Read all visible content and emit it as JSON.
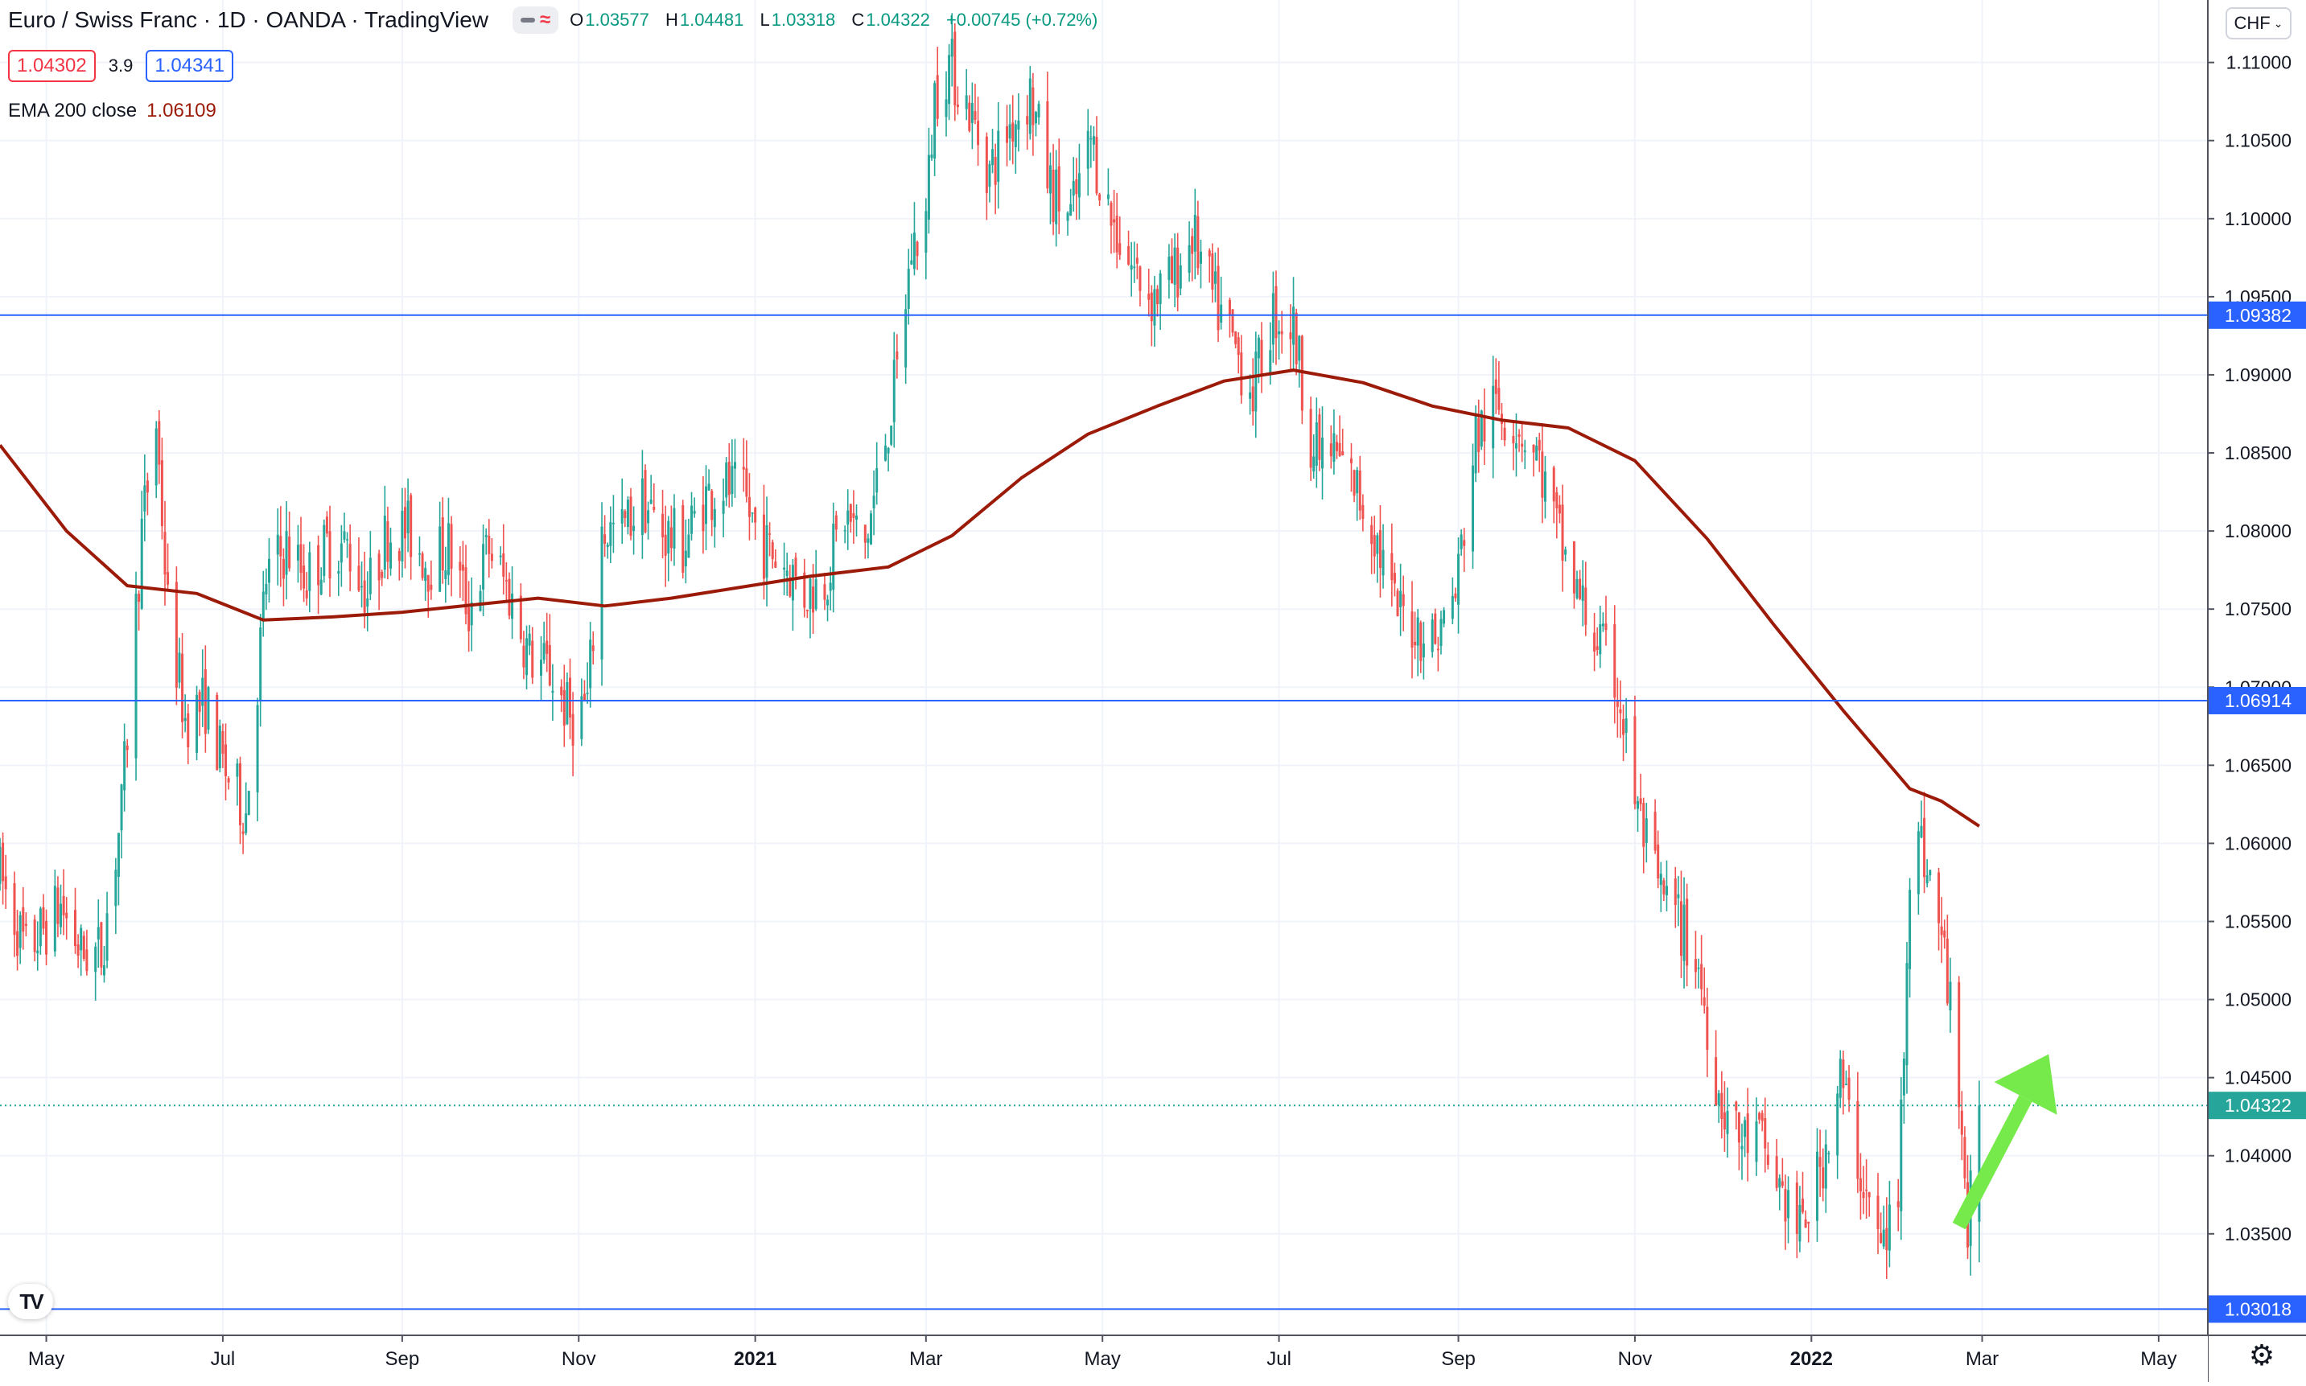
{
  "header": {
    "title": "Euro / Swiss Franc · 1D · OANDA · TradingView",
    "ohlc": {
      "o_label": "O",
      "o": "1.03577",
      "h_label": "H",
      "h": "1.04481",
      "l_label": "L",
      "l": "1.03318",
      "c_label": "C",
      "c": "1.04322",
      "change": "+0.00745 (+0.72%)"
    },
    "sell_price": "1.04302",
    "spread": "3.9",
    "buy_price": "1.04341",
    "indicator_label": "EMA 200 close",
    "indicator_value": "1.06109",
    "currency": "CHF"
  },
  "colors": {
    "up": "#26a69a",
    "down": "#ef5350",
    "ema": "#9c1a08",
    "level": "#2962ff",
    "last_price": "#26a69a",
    "arrow": "#77ea4b",
    "grid": "#f0f3fa"
  },
  "icons": {
    "mode": "chart-mode-icon",
    "logo": "tradingview-logo-icon",
    "settings": "gear-icon",
    "arrow": "up-arrow-icon"
  },
  "chart_data": {
    "type": "candlestick",
    "symbol": "EURCHF",
    "y_axis": {
      "min": 1.0285,
      "max": 1.114,
      "ticks": [
        "1.11000",
        "1.10500",
        "1.10000",
        "1.09500",
        "1.09000",
        "1.08500",
        "1.08000",
        "1.07500",
        "1.07000",
        "1.06500",
        "1.06000",
        "1.05500",
        "1.05000",
        "1.04500",
        "1.04000",
        "1.03500"
      ]
    },
    "x_axis": {
      "range": [
        "2020-04-15",
        "2022-05-18"
      ],
      "labels": [
        {
          "date": "2020-05-01",
          "text": "May"
        },
        {
          "date": "2020-07-01",
          "text": "Jul"
        },
        {
          "date": "2020-09-01",
          "text": "Sep"
        },
        {
          "date": "2020-11-01",
          "text": "Nov"
        },
        {
          "date": "2021-01-01",
          "text": "2021",
          "bold": true
        },
        {
          "date": "2021-03-01",
          "text": "Mar"
        },
        {
          "date": "2021-05-01",
          "text": "May"
        },
        {
          "date": "2021-07-01",
          "text": "Jul"
        },
        {
          "date": "2021-09-01",
          "text": "Sep"
        },
        {
          "date": "2021-11-01",
          "text": "Nov"
        },
        {
          "date": "2022-01-01",
          "text": "2022",
          "bold": true
        },
        {
          "date": "2022-03-01",
          "text": "Mar"
        },
        {
          "date": "2022-05-01",
          "text": "May"
        }
      ]
    },
    "price_path": [
      [
        "2020-04-15",
        1.058
      ],
      [
        "2020-04-24",
        1.053
      ],
      [
        "2020-05-06",
        1.056
      ],
      [
        "2020-05-13",
        1.053
      ],
      [
        "2020-05-20",
        1.053
      ],
      [
        "2020-05-27",
        1.062
      ],
      [
        "2020-06-03",
        1.08
      ],
      [
        "2020-06-08",
        1.087
      ],
      [
        "2020-06-12",
        1.075
      ],
      [
        "2020-06-18",
        1.068
      ],
      [
        "2020-06-25",
        1.069
      ],
      [
        "2020-07-01",
        1.065
      ],
      [
        "2020-07-09",
        1.062
      ],
      [
        "2020-07-16",
        1.077
      ],
      [
        "2020-07-23",
        1.079
      ],
      [
        "2020-07-30",
        1.077
      ],
      [
        "2020-08-06",
        1.079
      ],
      [
        "2020-08-13",
        1.079
      ],
      [
        "2020-08-20",
        1.076
      ],
      [
        "2020-08-27",
        1.08
      ],
      [
        "2020-09-03",
        1.08
      ],
      [
        "2020-09-10",
        1.078
      ],
      [
        "2020-09-17",
        1.079
      ],
      [
        "2020-09-24",
        1.075
      ],
      [
        "2020-10-01",
        1.079
      ],
      [
        "2020-10-08",
        1.076
      ],
      [
        "2020-10-15",
        1.072
      ],
      [
        "2020-10-22",
        1.071
      ],
      [
        "2020-10-29",
        1.068
      ],
      [
        "2020-11-04",
        1.069
      ],
      [
        "2020-11-09",
        1.08
      ],
      [
        "2020-11-16",
        1.08
      ],
      [
        "2020-11-23",
        1.082
      ],
      [
        "2020-11-30",
        1.08
      ],
      [
        "2020-12-07",
        1.079
      ],
      [
        "2020-12-14",
        1.082
      ],
      [
        "2020-12-21",
        1.083
      ],
      [
        "2020-12-28",
        1.082
      ],
      [
        "2021-01-04",
        1.079
      ],
      [
        "2021-01-11",
        1.078
      ],
      [
        "2021-01-18",
        1.076
      ],
      [
        "2021-01-25",
        1.077
      ],
      [
        "2021-02-01",
        1.081
      ],
      [
        "2021-02-08",
        1.079
      ],
      [
        "2021-02-15",
        1.086
      ],
      [
        "2021-02-19",
        1.09
      ],
      [
        "2021-02-24",
        1.098
      ],
      [
        "2021-03-01",
        1.1
      ],
      [
        "2021-03-04",
        1.108
      ],
      [
        "2021-03-09",
        1.11
      ],
      [
        "2021-03-16",
        1.107
      ],
      [
        "2021-03-23",
        1.103
      ],
      [
        "2021-03-30",
        1.106
      ],
      [
        "2021-04-06",
        1.108
      ],
      [
        "2021-04-13",
        1.102
      ],
      [
        "2021-04-20",
        1.1
      ],
      [
        "2021-04-27",
        1.105
      ],
      [
        "2021-05-04",
        1.1
      ],
      [
        "2021-05-11",
        1.097
      ],
      [
        "2021-05-18",
        1.095
      ],
      [
        "2021-05-25",
        1.096
      ],
      [
        "2021-06-01",
        1.099
      ],
      [
        "2021-06-08",
        1.095
      ],
      [
        "2021-06-15",
        1.092
      ],
      [
        "2021-06-22",
        1.089
      ],
      [
        "2021-06-29",
        1.094
      ],
      [
        "2021-07-06",
        1.093
      ],
      [
        "2021-07-13",
        1.085
      ],
      [
        "2021-07-20",
        1.085
      ],
      [
        "2021-07-27",
        1.083
      ],
      [
        "2021-08-03",
        1.08
      ],
      [
        "2021-08-10",
        1.075
      ],
      [
        "2021-08-17",
        1.074
      ],
      [
        "2021-08-24",
        1.073
      ],
      [
        "2021-08-31",
        1.076
      ],
      [
        "2021-09-07",
        1.086
      ],
      [
        "2021-09-14",
        1.088
      ],
      [
        "2021-09-21",
        1.087
      ],
      [
        "2021-09-28",
        1.085
      ],
      [
        "2021-10-05",
        1.08
      ],
      [
        "2021-10-12",
        1.076
      ],
      [
        "2021-10-19",
        1.073
      ],
      [
        "2021-10-26",
        1.07
      ],
      [
        "2021-11-02",
        1.062
      ],
      [
        "2021-11-09",
        1.057
      ],
      [
        "2021-11-16",
        1.055
      ],
      [
        "2021-11-23",
        1.052
      ],
      [
        "2021-11-30",
        1.044
      ],
      [
        "2021-12-07",
        1.041
      ],
      [
        "2021-12-14",
        1.041
      ],
      [
        "2021-12-21",
        1.038
      ],
      [
        "2021-12-28",
        1.035
      ],
      [
        "2022-01-04",
        1.039
      ],
      [
        "2022-01-11",
        1.045
      ],
      [
        "2022-01-18",
        1.039
      ],
      [
        "2022-01-25",
        1.034
      ],
      [
        "2022-01-31",
        1.037
      ],
      [
        "2022-02-04",
        1.059
      ],
      [
        "2022-02-08",
        1.06
      ],
      [
        "2022-02-15",
        1.054
      ],
      [
        "2022-02-21",
        1.045
      ],
      [
        "2022-02-24",
        1.035
      ],
      [
        "2022-02-28",
        1.0432
      ]
    ],
    "ema200_path": [
      [
        "2020-04-15",
        1.0855
      ],
      [
        "2020-05-08",
        1.08
      ],
      [
        "2020-05-29",
        1.0765
      ],
      [
        "2020-06-22",
        1.076
      ],
      [
        "2020-07-15",
        1.0743
      ],
      [
        "2020-08-08",
        1.0745
      ],
      [
        "2020-09-01",
        1.0748
      ],
      [
        "2020-09-22",
        1.0752
      ],
      [
        "2020-10-18",
        1.0757
      ],
      [
        "2020-11-10",
        1.0752
      ],
      [
        "2020-12-03",
        1.0757
      ],
      [
        "2020-12-27",
        1.0764
      ],
      [
        "2021-01-20",
        1.0771
      ],
      [
        "2021-02-16",
        1.0777
      ],
      [
        "2021-03-10",
        1.0797
      ],
      [
        "2021-04-03",
        1.0834
      ],
      [
        "2021-04-26",
        1.0862
      ],
      [
        "2021-05-20",
        1.088
      ],
      [
        "2021-06-12",
        1.0896
      ],
      [
        "2021-07-06",
        1.0903
      ],
      [
        "2021-07-30",
        1.0895
      ],
      [
        "2021-08-23",
        1.088
      ],
      [
        "2021-09-16",
        1.0871
      ],
      [
        "2021-10-09",
        1.0866
      ],
      [
        "2021-11-01",
        1.0845
      ],
      [
        "2021-11-26",
        1.0795
      ],
      [
        "2021-12-19",
        1.074
      ],
      [
        "2022-01-12",
        1.0685
      ],
      [
        "2022-02-04",
        1.0635
      ],
      [
        "2022-02-15",
        1.0627
      ],
      [
        "2022-02-28",
        1.0611
      ]
    ],
    "horizontal_lines": [
      {
        "price": 1.09382,
        "label": "1.09382"
      },
      {
        "price": 1.06914,
        "label": "1.06914"
      },
      {
        "price": 1.03018,
        "label": "1.03018"
      }
    ],
    "last_price": {
      "price": 1.04322,
      "label": "1.04322"
    },
    "candle_seed": 7,
    "annotation": {
      "type": "arrow",
      "direction": "up",
      "from": [
        "2022-02-21",
        1.0355
      ],
      "to": [
        "2022-03-24",
        1.0465
      ]
    }
  }
}
